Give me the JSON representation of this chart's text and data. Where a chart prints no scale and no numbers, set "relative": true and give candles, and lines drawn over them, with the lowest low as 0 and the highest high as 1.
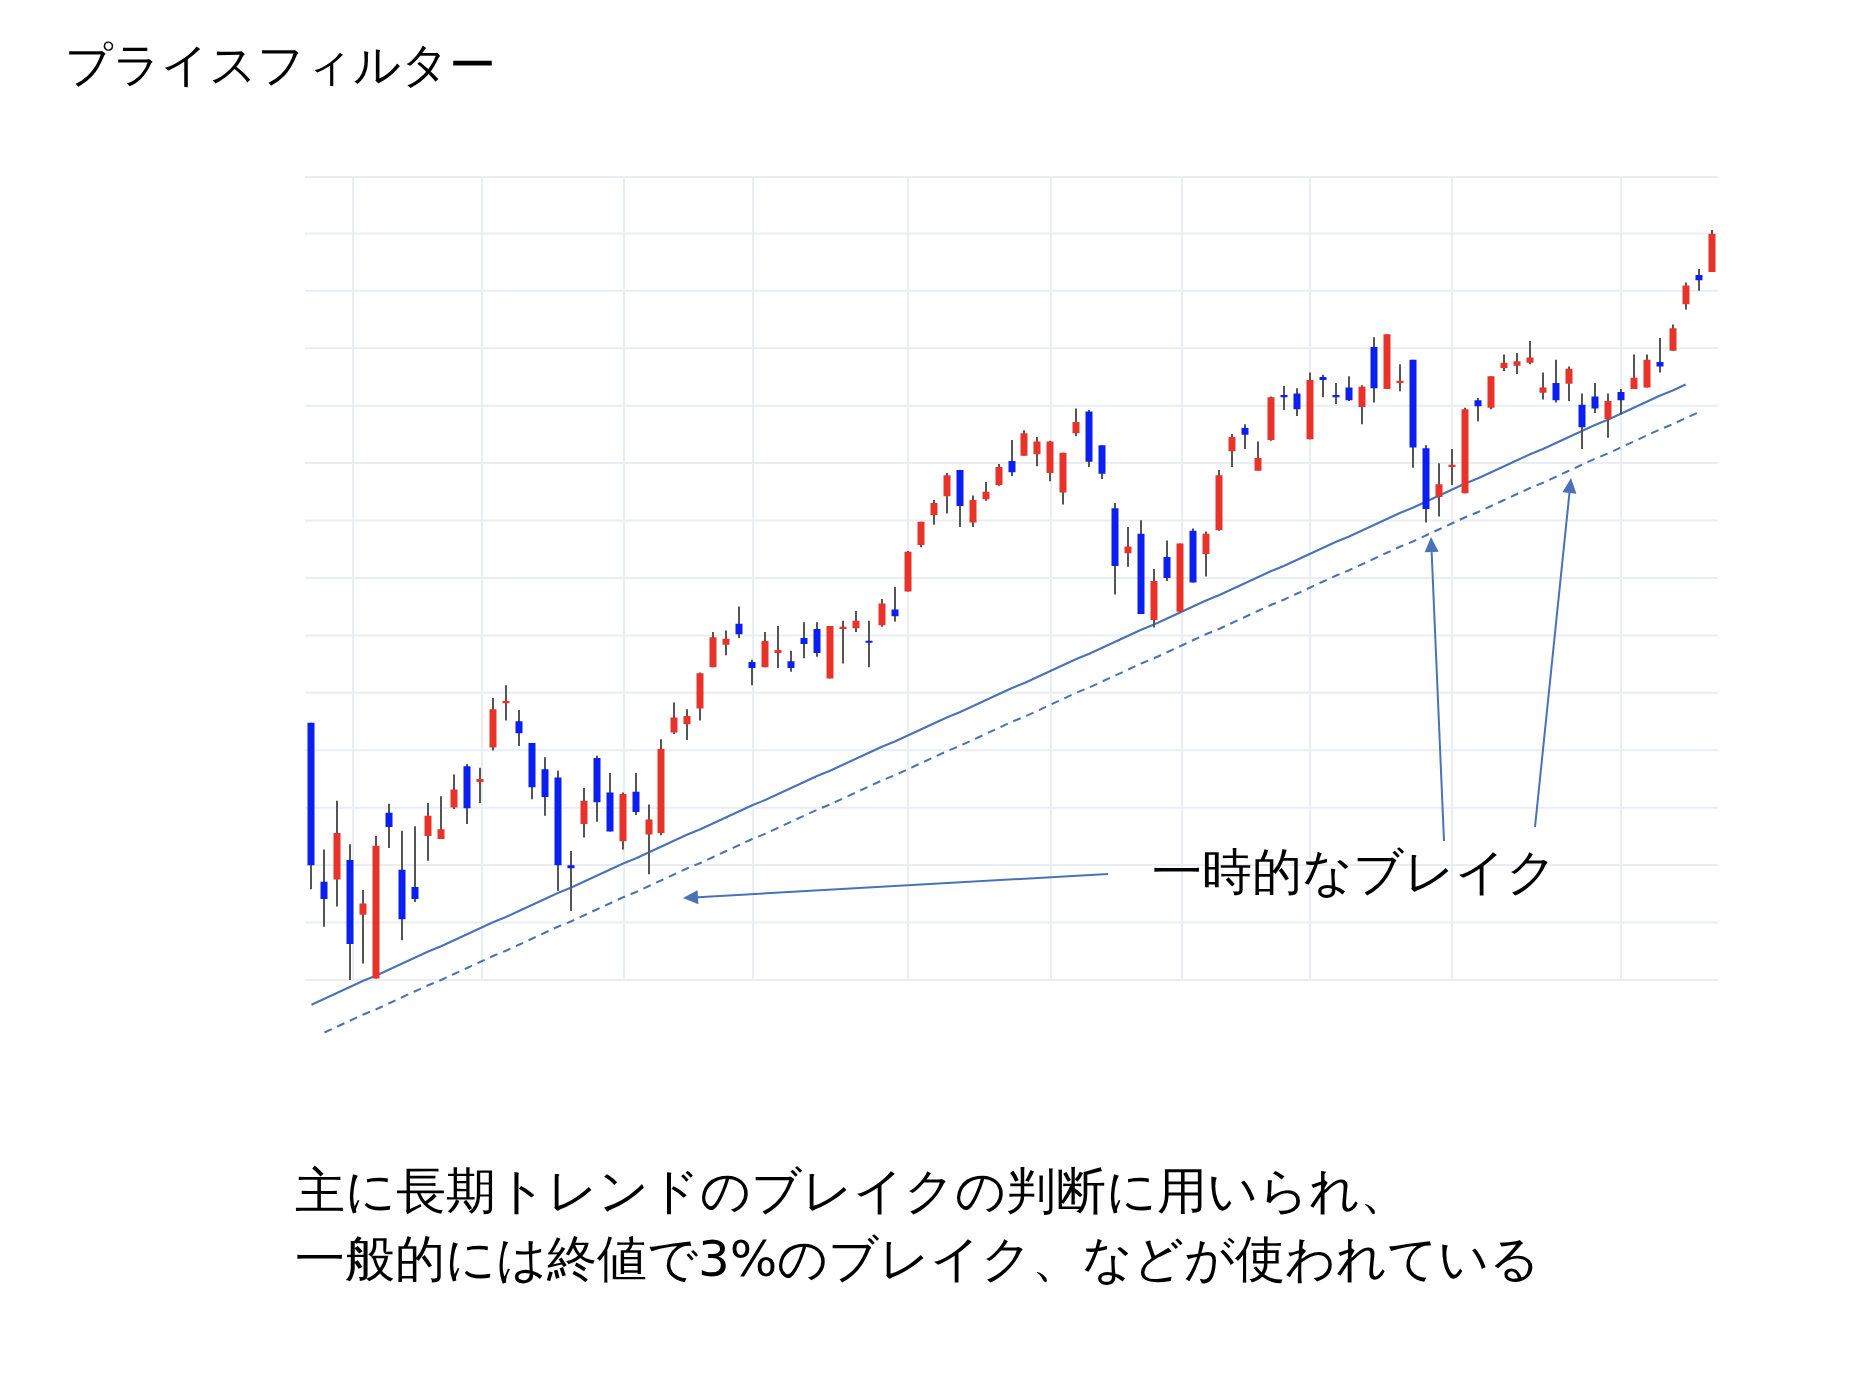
{
  "chart_data": {
    "type": "candlestick",
    "title": "プライスフィルター",
    "annotations": [
      "一時的なブレイク",
      "主に長期トレンドのブレイクの判断に用いられ、",
      "一般的には終値で3%のブレイク、などが使われている"
    ],
    "relative": true,
    "grid": true,
    "tick_labels": false,
    "categories": [
      null,
      null,
      null,
      null,
      null,
      null,
      null,
      null,
      null,
      null,
      null,
      null,
      null,
      null,
      null,
      null,
      null,
      null,
      null,
      null,
      null,
      null,
      null,
      null,
      null,
      null,
      null,
      null,
      null,
      null,
      null,
      null,
      null,
      null,
      null,
      null,
      null,
      null,
      null,
      null,
      null,
      null,
      null,
      null,
      null,
      null,
      null,
      null,
      null,
      null,
      null,
      null,
      null,
      null,
      null,
      null,
      null,
      null,
      null,
      null,
      null,
      null,
      null,
      null,
      null,
      null,
      null,
      null,
      null,
      null,
      null,
      null,
      null,
      null,
      null,
      null,
      null,
      null,
      null,
      null,
      null,
      null,
      null,
      null,
      null,
      null,
      null,
      null,
      null,
      null,
      null,
      null,
      null,
      null,
      null,
      null,
      null,
      null,
      null,
      null,
      null,
      null,
      null,
      null,
      null,
      null,
      null,
      null,
      null
    ],
    "ohlc": [
      [
        0.343,
        0.343,
        0.121,
        0.153
      ],
      [
        0.131,
        0.174,
        0.071,
        0.108
      ],
      [
        0.134,
        0.239,
        0.098,
        0.196
      ],
      [
        0.16,
        0.181,
        0,
        0.048
      ],
      [
        0.087,
        0.12,
        0.022,
        0.102
      ],
      [
        0.002,
        0.192,
        0.002,
        0.179
      ],
      [
        0.223,
        0.235,
        0.176,
        0.204
      ],
      [
        0.147,
        0.199,
        0.053,
        0.081
      ],
      [
        0.124,
        0.205,
        0.104,
        0.108
      ],
      [
        0.192,
        0.236,
        0.159,
        0.219
      ],
      [
        0.188,
        0.245,
        0.188,
        0.201
      ],
      [
        0.23,
        0.274,
        0.228,
        0.254
      ],
      [
        0.285,
        0.288,
        0.208,
        0.229
      ],
      [
        0.264,
        0.283,
        0.236,
        0.268
      ],
      [
        0.31,
        0.376,
        0.306,
        0.361
      ],
      [
        0.369,
        0.393,
        0.346,
        0.372
      ],
      [
        0.345,
        0.36,
        0.312,
        0.329
      ],
      [
        0.316,
        0.316,
        0.241,
        0.257
      ],
      [
        0.281,
        0.297,
        0.219,
        0.244
      ],
      [
        0.27,
        0.279,
        0.119,
        0.153
      ],
      [
        0.153,
        0.172,
        0.092,
        0.149
      ],
      [
        0.208,
        0.256,
        0.19,
        0.239
      ],
      [
        0.296,
        0.299,
        0.211,
        0.237
      ],
      [
        0.25,
        0.276,
        0.198,
        0.198
      ],
      [
        0.185,
        0.25,
        0.174,
        0.248
      ],
      [
        0.251,
        0.276,
        0.22,
        0.224
      ],
      [
        0.194,
        0.234,
        0.141,
        0.214
      ],
      [
        0.196,
        0.321,
        0.193,
        0.308
      ],
      [
        0.33,
        0.37,
        0.328,
        0.35
      ],
      [
        0.341,
        0.361,
        0.32,
        0.352
      ],
      [
        0.362,
        0.41,
        0.346,
        0.409
      ],
      [
        0.417,
        0.464,
        0.417,
        0.457
      ],
      [
        0.447,
        0.466,
        0.433,
        0.455
      ],
      [
        0.475,
        0.498,
        0.456,
        0.461
      ],
      [
        0.424,
        0.427,
        0.393,
        0.416
      ],
      [
        0.417,
        0.464,
        0.417,
        0.452
      ],
      [
        0.436,
        0.472,
        0.416,
        0.44
      ],
      [
        0.425,
        0.439,
        0.411,
        0.416
      ],
      [
        0.456,
        0.477,
        0.429,
        0.448
      ],
      [
        0.468,
        0.477,
        0.431,
        0.436
      ],
      [
        0.402,
        0.472,
        0.402,
        0.472
      ],
      [
        0.468,
        0.479,
        0.422,
        0.471
      ],
      [
        0.469,
        0.492,
        0.464,
        0.479
      ],
      [
        0.452,
        0.479,
        0.417,
        0.45
      ],
      [
        0.473,
        0.508,
        0.471,
        0.502
      ],
      [
        0.494,
        0.524,
        0.478,
        0.485
      ],
      [
        0.518,
        0.572,
        0.518,
        0.571
      ],
      [
        0.58,
        0.611,
        0.577,
        0.611
      ],
      [
        0.62,
        0.64,
        0.607,
        0.636
      ],
      [
        0.645,
        0.676,
        0.622,
        0.673
      ],
      [
        0.68,
        0.68,
        0.604,
        0.632
      ],
      [
        0.61,
        0.646,
        0.604,
        0.64
      ],
      [
        0.641,
        0.664,
        0.639,
        0.651
      ],
      [
        0.66,
        0.688,
        0.659,
        0.684
      ],
      [
        0.692,
        0.72,
        0.672,
        0.677
      ],
      [
        0.699,
        0.733,
        0.699,
        0.729
      ],
      [
        0.701,
        0.724,
        0.685,
        0.718
      ],
      [
        0.676,
        0.719,
        0.665,
        0.718
      ],
      [
        0.65,
        0.703,
        0.634,
        0.703
      ],
      [
        0.729,
        0.762,
        0.725,
        0.744
      ],
      [
        0.758,
        0.76,
        0.684,
        0.691
      ],
      [
        0.713,
        0.713,
        0.668,
        0.675
      ],
      [
        0.629,
        0.636,
        0.514,
        0.552
      ],
      [
        0.569,
        0.604,
        0.551,
        0.578
      ],
      [
        0.595,
        0.613,
        0.488,
        0.488
      ],
      [
        0.48,
        0.548,
        0.47,
        0.532
      ],
      [
        0.564,
        0.586,
        0.532,
        0.536
      ],
      [
        0.491,
        0.582,
        0.49,
        0.582
      ],
      [
        0.599,
        0.602,
        0.53,
        0.53
      ],
      [
        0.568,
        0.598,
        0.538,
        0.595
      ],
      [
        0.6,
        0.68,
        0.599,
        0.673
      ],
      [
        0.705,
        0.728,
        0.684,
        0.724
      ],
      [
        0.736,
        0.741,
        0.708,
        0.727
      ],
      [
        0.679,
        0.718,
        0.679,
        0.696
      ],
      [
        0.72,
        0.778,
        0.719,
        0.777
      ],
      [
        0.78,
        0.792,
        0.76,
        0.777
      ],
      [
        0.782,
        0.789,
        0.752,
        0.761
      ],
      [
        0.721,
        0.81,
        0.721,
        0.8
      ],
      [
        0.804,
        0.807,
        0.777,
        0.8
      ],
      [
        0.78,
        0.796,
        0.768,
        0.777
      ],
      [
        0.79,
        0.805,
        0.772,
        0.773
      ],
      [
        0.764,
        0.793,
        0.741,
        0.791
      ],
      [
        0.844,
        0.857,
        0.77,
        0.789
      ],
      [
        0.788,
        0.861,
        0.788,
        0.861
      ],
      [
        0.796,
        0.821,
        0.785,
        0.799
      ],
      [
        0.827,
        0.827,
        0.683,
        0.71
      ],
      [
        0.709,
        0.713,
        0.61,
        0.628
      ],
      [
        0.644,
        0.689,
        0.618,
        0.661
      ],
      [
        0.684,
        0.708,
        0.66,
        0.687
      ],
      [
        0.649,
        0.763,
        0.649,
        0.761
      ],
      [
        0.773,
        0.776,
        0.745,
        0.765
      ],
      [
        0.763,
        0.805,
        0.761,
        0.805
      ],
      [
        0.816,
        0.834,
        0.812,
        0.823
      ],
      [
        0.819,
        0.836,
        0.808,
        0.825
      ],
      [
        0.823,
        0.852,
        0.821,
        0.83
      ],
      [
        0.783,
        0.81,
        0.774,
        0.79
      ],
      [
        0.796,
        0.827,
        0.77,
        0.773
      ],
      [
        0.795,
        0.818,
        0.772,
        0.815
      ],
      [
        0.767,
        0.782,
        0.708,
        0.737
      ],
      [
        0.778,
        0.796,
        0.756,
        0.762
      ],
      [
        0.748,
        0.782,
        0.723,
        0.772
      ],
      [
        0.784,
        0.788,
        0.754,
        0.773
      ],
      [
        0.788,
        0.834,
        0.788,
        0.803
      ],
      [
        0.79,
        0.834,
        0.79,
        0.827
      ],
      [
        0.824,
        0.856,
        0.81,
        0.818
      ],
      [
        0.839,
        0.874,
        0.839,
        0.869
      ],
      [
        0.901,
        0.93,
        0.894,
        0.926
      ],
      [
        0.94,
        0.948,
        0.919,
        0.933
      ],
      [
        0.944,
        1,
        0.944,
        0.995
      ]
    ],
    "colors": [
      "#0a1ff0",
      "#0a1ff0",
      "#e8332a",
      "#0a1ff0",
      "#e8332a",
      "#e8332a",
      "#0a1ff0",
      "#0a1ff0",
      "#0a1ff0",
      "#e8332a",
      "#e8332a",
      "#e8332a",
      "#0a1ff0",
      "#e8332a",
      "#e8332a",
      "#e8332a",
      "#0a1ff0",
      "#0a1ff0",
      "#0a1ff0",
      "#0a1ff0",
      "#0a1ff0",
      "#e8332a",
      "#0a1ff0",
      "#0a1ff0",
      "#e8332a",
      "#0a1ff0",
      "#e8332a",
      "#e8332a",
      "#e8332a",
      "#e8332a",
      "#e8332a",
      "#e8332a",
      "#e8332a",
      "#0a1ff0",
      "#0a1ff0",
      "#e8332a",
      "#e8332a",
      "#0a1ff0",
      "#0a1ff0",
      "#0a1ff0",
      "#e8332a",
      "#e8332a",
      "#e8332a",
      "#0a1ff0",
      "#e8332a",
      "#0a1ff0",
      "#e8332a",
      "#e8332a",
      "#e8332a",
      "#e8332a",
      "#0a1ff0",
      "#e8332a",
      "#e8332a",
      "#e8332a",
      "#0a1ff0",
      "#e8332a",
      "#e8332a",
      "#e8332a",
      "#e8332a",
      "#e8332a",
      "#0a1ff0",
      "#0a1ff0",
      "#0a1ff0",
      "#e8332a",
      "#0a1ff0",
      "#e8332a",
      "#0a1ff0",
      "#e8332a",
      "#0a1ff0",
      "#e8332a",
      "#e8332a",
      "#e8332a",
      "#0a1ff0",
      "#e8332a",
      "#e8332a",
      "#0a1ff0",
      "#0a1ff0",
      "#e8332a",
      "#0a1ff0",
      "#0a1ff0",
      "#0a1ff0",
      "#e8332a",
      "#0a1ff0",
      "#e8332a",
      "#e8332a",
      "#0a1ff0",
      "#0a1ff0",
      "#e8332a",
      "#e8332a",
      "#e8332a",
      "#0a1ff0",
      "#e8332a",
      "#e8332a",
      "#e8332a",
      "#e8332a",
      "#e8332a",
      "#0a1ff0",
      "#e8332a",
      "#0a1ff0",
      "#0a1ff0",
      "#e8332a",
      "#0a1ff0",
      "#e8332a",
      "#e8332a",
      "#0a1ff0",
      "#e8332a",
      "#e8332a",
      "#0a1ff0",
      "#e8332a"
    ],
    "series": [
      {
        "type": "line",
        "color": "#4a72b6",
        "line_style": "solid",
        "values": [
          -0.033,
          -0.025,
          -0.017,
          -0.009,
          -0.001,
          0.006,
          0.014,
          0.022,
          0.03,
          0.038,
          0.045,
          0.053,
          0.061,
          0.069,
          0.077,
          0.084,
          0.092,
          0.1,
          0.108,
          0.116,
          0.123,
          0.131,
          0.139,
          0.147,
          0.155,
          0.162,
          0.17,
          0.178,
          0.186,
          0.194,
          0.201,
          0.209,
          0.217,
          0.225,
          0.233,
          0.24,
          0.248,
          0.256,
          0.264,
          0.272,
          0.279,
          0.287,
          0.295,
          0.303,
          0.311,
          0.318,
          0.326,
          0.334,
          0.342,
          0.35,
          0.357,
          0.365,
          0.373,
          0.381,
          0.389,
          0.396,
          0.404,
          0.412,
          0.42,
          0.428,
          0.435,
          0.443,
          0.451,
          0.459,
          0.467,
          0.474,
          0.482,
          0.49,
          0.498,
          0.506,
          0.513,
          0.521,
          0.529,
          0.537,
          0.545,
          0.552,
          0.56,
          0.568,
          0.576,
          0.584,
          0.591,
          0.599,
          0.607,
          0.615,
          0.623,
          0.63,
          0.638,
          0.646,
          0.654,
          0.662,
          0.669,
          0.677,
          0.685,
          0.693,
          0.701,
          0.708,
          0.716,
          0.724,
          0.732,
          0.74,
          0.747,
          0.755,
          0.763,
          0.771,
          0.779,
          0.786,
          0.794,
          null,
          null
        ]
      },
      {
        "type": "line",
        "color": "#4a72b6",
        "line_style": "dashed",
        "values": [
          null,
          -0.07,
          -0.062,
          -0.054,
          -0.046,
          -0.039,
          -0.031,
          -0.023,
          -0.015,
          -0.007,
          0,
          0.008,
          0.016,
          0.024,
          0.032,
          0.039,
          0.047,
          0.055,
          0.063,
          0.071,
          0.078,
          0.086,
          0.094,
          0.102,
          0.11,
          0.117,
          0.125,
          0.133,
          0.141,
          0.149,
          0.156,
          0.164,
          0.172,
          0.18,
          0.188,
          0.195,
          0.203,
          0.211,
          0.219,
          0.227,
          0.234,
          0.242,
          0.25,
          0.258,
          0.266,
          0.273,
          0.281,
          0.289,
          0.297,
          0.305,
          0.312,
          0.32,
          0.328,
          0.336,
          0.344,
          0.351,
          0.359,
          0.367,
          0.375,
          0.383,
          0.39,
          0.398,
          0.406,
          0.414,
          0.422,
          0.429,
          0.437,
          0.445,
          0.453,
          0.461,
          0.468,
          0.476,
          0.484,
          0.492,
          0.5,
          0.507,
          0.515,
          0.523,
          0.531,
          0.539,
          0.546,
          0.554,
          0.562,
          0.57,
          0.578,
          0.585,
          0.593,
          0.601,
          0.609,
          0.617,
          0.624,
          0.632,
          0.64,
          0.648,
          0.656,
          0.663,
          0.671,
          0.679,
          0.687,
          0.695,
          0.702,
          0.71,
          0.718,
          0.726,
          0.734,
          0.741,
          0.749,
          0.757,
          null
        ]
      }
    ]
  }
}
